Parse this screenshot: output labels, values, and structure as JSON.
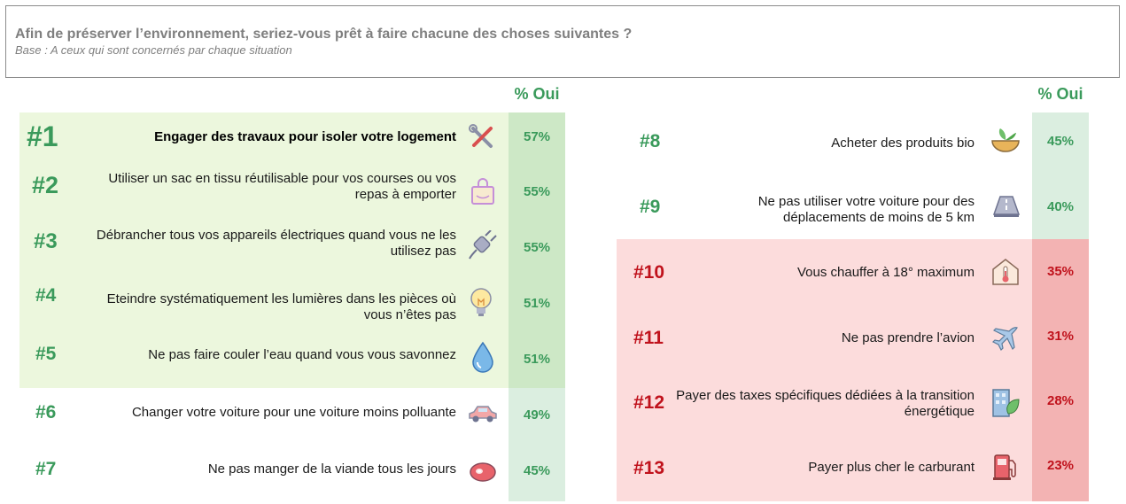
{
  "header": {
    "title": "Afin de préserver l’environnement, seriez-vous prêt à faire chacune des choses suivantes ?",
    "subtitle": "Base : A ceux qui sont concernés par chaque situation"
  },
  "column_header_left": "% Oui",
  "column_header_right": "% Oui",
  "colors": {
    "green_text": "#3a9a5b",
    "red_text": "#c0121c",
    "green_bg": "#ecf7dd",
    "green_pct_bg": "#cde8c6",
    "pale_pct_bg": "#dbeee0",
    "red_bg": "#fcdcdc",
    "red_pct_bg": "#f3b3b3"
  },
  "left_items": [
    {
      "rank": "#1",
      "label": "Engager des travaux pour isoler votre logement",
      "pct": "57%",
      "icon": "tools-icon"
    },
    {
      "rank": "#2",
      "label": "Utiliser un sac en tissu réutilisable pour vos courses ou vos repas à emporter",
      "pct": "55%",
      "icon": "bag-icon"
    },
    {
      "rank": "#3",
      "label": "Débrancher tous vos appareils électriques quand vous ne les utilisez pas",
      "pct": "55%",
      "icon": "plug-icon"
    },
    {
      "rank": "#4",
      "label": "Eteindre systématiquement les lumières dans les pièces où vous n’êtes pas",
      "pct": "51%",
      "icon": "lightbulb-icon"
    },
    {
      "rank": "#5",
      "label": "Ne pas faire couler l’eau quand vous vous savonnez",
      "pct": "51%",
      "icon": "water-drop-icon"
    },
    {
      "rank": "#6",
      "label": "Changer votre voiture pour une voiture moins polluante",
      "pct": "49%",
      "icon": "car-icon"
    },
    {
      "rank": "#7",
      "label": "Ne pas manger de la viande tous les jours",
      "pct": "45%",
      "icon": "meat-icon"
    }
  ],
  "right_items": [
    {
      "rank": "#8",
      "label": "Acheter des produits bio",
      "pct": "45%",
      "icon": "organic-bowl-icon"
    },
    {
      "rank": "#9",
      "label": "Ne pas utiliser votre voiture pour des déplacements de moins de 5 km",
      "pct": "40%",
      "icon": "road-icon"
    },
    {
      "rank": "#10",
      "label": "Vous chauffer à 18° maximum",
      "pct": "35%",
      "icon": "thermometer-house-icon"
    },
    {
      "rank": "#11",
      "label": "Ne pas prendre l’avion",
      "pct": "31%",
      "icon": "airplane-icon"
    },
    {
      "rank": "#12",
      "label": "Payer des taxes spécifiques dédiées à la transition énergétique",
      "pct": "28%",
      "icon": "green-building-icon"
    },
    {
      "rank": "#13",
      "label": "Payer plus cher le carburant",
      "pct": "23%",
      "icon": "fuel-pump-icon"
    }
  ]
}
